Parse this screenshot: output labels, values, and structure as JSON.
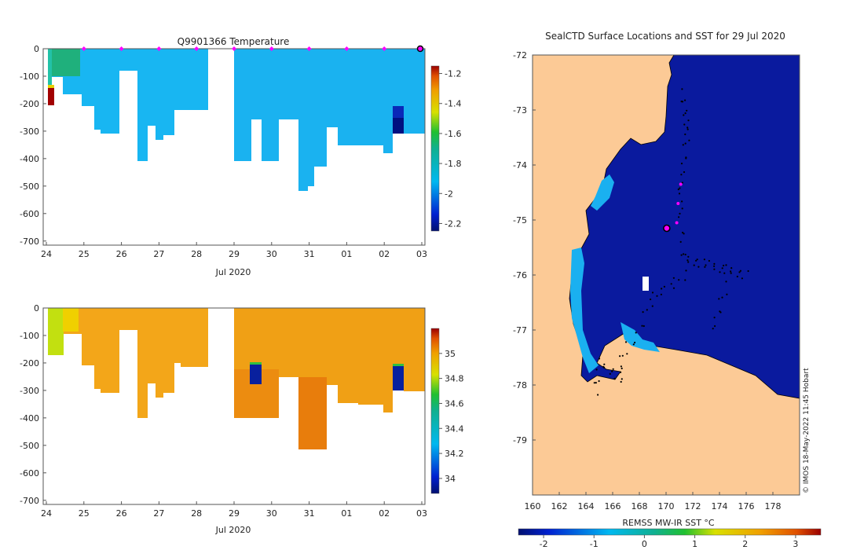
{
  "colors": {
    "land": "#fcca96",
    "ocean_cold": "#0a1a9e",
    "ocean_cool": "#1ab0f0",
    "salinity_fill": "#f3a419",
    "marker": "#ff00ff"
  },
  "chart_data": [
    {
      "type": "heatmap",
      "title": "Q9901366  Temperature",
      "xlabel": "Jul 2020",
      "x_ticks": [
        "24",
        "25",
        "26",
        "27",
        "28",
        "29",
        "30",
        "31",
        "01",
        "02",
        "03"
      ],
      "y_ticks": [
        "0",
        "-100",
        "-200",
        "-300",
        "-400",
        "-500",
        "-600",
        "-700"
      ],
      "ylim": [
        -715,
        0
      ],
      "colorbar": {
        "ticks": [
          "-1.2",
          "-1.4",
          "-1.6",
          "-1.8",
          "-2",
          "-2.2"
        ],
        "range": [
          -2.25,
          -1.15
        ]
      },
      "profile_markers_day": [
        25,
        26,
        27,
        28,
        29,
        30,
        31,
        32,
        33
      ],
      "latest_profile_day": 34
    },
    {
      "type": "heatmap",
      "title": "",
      "xlabel": "Jul 2020",
      "x_ticks": [
        "24",
        "25",
        "26",
        "27",
        "28",
        "29",
        "30",
        "31",
        "01",
        "02",
        "03"
      ],
      "y_ticks": [
        "0",
        "-100",
        "-200",
        "-300",
        "-400",
        "-500",
        "-600",
        "-700"
      ],
      "ylim": [
        -715,
        0
      ],
      "colorbar": {
        "ticks": [
          "35",
          "34.8",
          "34.6",
          "34.4",
          "34.2",
          "34"
        ],
        "range": [
          33.88,
          35.2
        ]
      }
    },
    {
      "type": "scatter",
      "title": "SealCTD Surface Locations and SST for 29 Jul 2020",
      "lon_ticks": [
        "160",
        "162",
        "164",
        "166",
        "168",
        "170",
        "172",
        "174",
        "176",
        "178"
      ],
      "lat_ticks": [
        "-72",
        "-73",
        "-74",
        "-75",
        "-76",
        "-77",
        "-78",
        "-79"
      ],
      "xlim": [
        160,
        180
      ],
      "ylim": [
        -80,
        -72
      ],
      "latest_position": {
        "lon": 170.05,
        "lat": -75.15
      },
      "recent_positions": [
        {
          "lon": 170.8,
          "lat": -75.05
        },
        {
          "lon": 170.9,
          "lat": -74.7
        },
        {
          "lon": 171.1,
          "lat": -74.35
        }
      ],
      "colorbar": {
        "label": "REMSS MW-IR SST °C",
        "ticks": [
          "-2",
          "-1",
          "0",
          "1",
          "2",
          "3"
        ],
        "range": [
          -2.5,
          3.5
        ]
      }
    }
  ],
  "credit": "© IMOS 18-May-2022 11:45 Hobart"
}
